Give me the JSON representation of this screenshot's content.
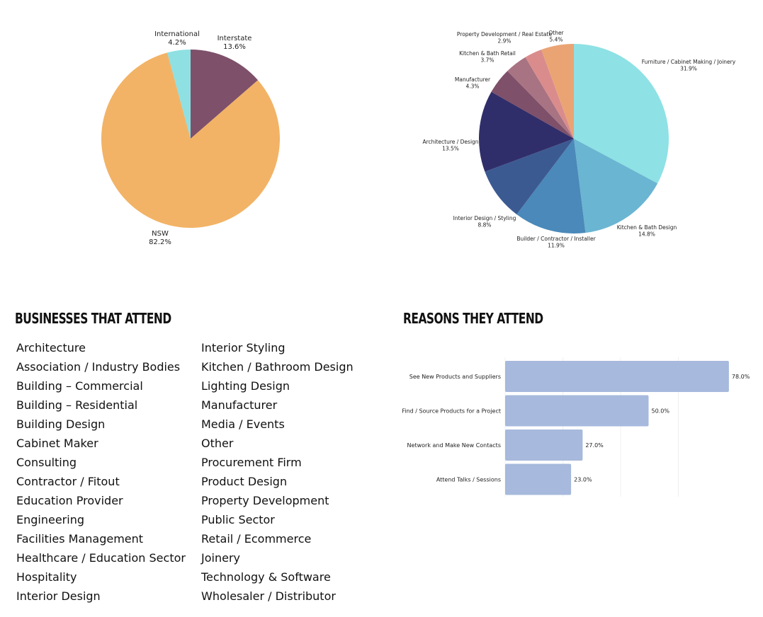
{
  "colors": {
    "nsw": "#F2B366",
    "international": "#8EE0E3",
    "interstate": "#7E506A",
    "bar": "#A7B9DC",
    "reasons_grid": "#F0F0F0"
  },
  "chart_data": [
    {
      "type": "pie",
      "title": "",
      "slices": [
        {
          "label": "Interstate",
          "value": 13.6,
          "display": "13.6%",
          "color": "#7E506A"
        },
        {
          "label": "NSW",
          "value": 82.2,
          "display": "82.2%",
          "color": "#F2B366"
        },
        {
          "label": "International",
          "value": 4.2,
          "display": "4.2%",
          "color": "#8EE0E3"
        }
      ]
    },
    {
      "type": "pie",
      "title": "",
      "slices": [
        {
          "label": "Furniture / Cabinet Making / Joinery",
          "value": 31.9,
          "display": "31.9%",
          "color": "#8EE1E4"
        },
        {
          "label": "Kitchen & Bath Design",
          "value": 14.8,
          "display": "14.8%",
          "color": "#6AB5D2"
        },
        {
          "label": "Builder / Contractor / Installer",
          "value": 11.9,
          "display": "11.9%",
          "color": "#4A89B9"
        },
        {
          "label": "Interior Design / Styling",
          "value": 8.8,
          "display": "8.8%",
          "color": "#3C5A92"
        },
        {
          "label": "Architecture / Design",
          "value": 13.5,
          "display": "13.5%",
          "color": "#302E6A"
        },
        {
          "label": "Manufacturer",
          "value": 4.3,
          "display": "4.3%",
          "color": "#7E506A"
        },
        {
          "label": "Kitchen & Bath Retail",
          "value": 3.7,
          "display": "3.7%",
          "color": "#A87382"
        },
        {
          "label": "Property Development / Real Estate",
          "value": 2.9,
          "display": "2.9%",
          "color": "#DA8C8C"
        },
        {
          "label": "Other",
          "value": 5.4,
          "display": "5.4%",
          "color": "#EAA474",
          "_note": "other segment"
        }
      ]
    },
    {
      "type": "bar",
      "orientation": "horizontal",
      "title": "",
      "categories": [
        "See New Products and Suppliers",
        "Find / Source Products for a Project",
        "Network and Make New Contacts",
        "Attend Talks / Sessions"
      ],
      "values": [
        78.0,
        50.0,
        27.0,
        23.0
      ],
      "display": [
        "78.0%",
        "50.0%",
        "27.0%",
        "23.0%"
      ],
      "xlim": [
        0,
        80
      ],
      "grid": true
    }
  ],
  "sections": {
    "businesses_title": "BUSINESSES THAT ATTEND",
    "reasons_title": "REASONS THEY ATTEND"
  },
  "businesses": {
    "left": [
      "Architecture",
      "Association / Industry Bodies",
      "Building – Commercial",
      "Building – Residential",
      "Building Design",
      "Cabinet Maker",
      "Consulting",
      "Contractor / Fitout",
      "Education Provider",
      "Engineering",
      "Facilities Management",
      "Healthcare / Education Sector",
      "Hospitality",
      "Interior Design"
    ],
    "right": [
      "Interior Styling",
      "Kitchen / Bathroom Design",
      "Lighting Design",
      "Manufacturer",
      "Media / Events",
      "Other",
      "Procurement Firm",
      "Product Design",
      "Property Development",
      "Public Sector",
      "Retail / Ecommerce",
      "Joinery",
      "Technology & Software",
      "Wholesaler / Distributor"
    ]
  }
}
